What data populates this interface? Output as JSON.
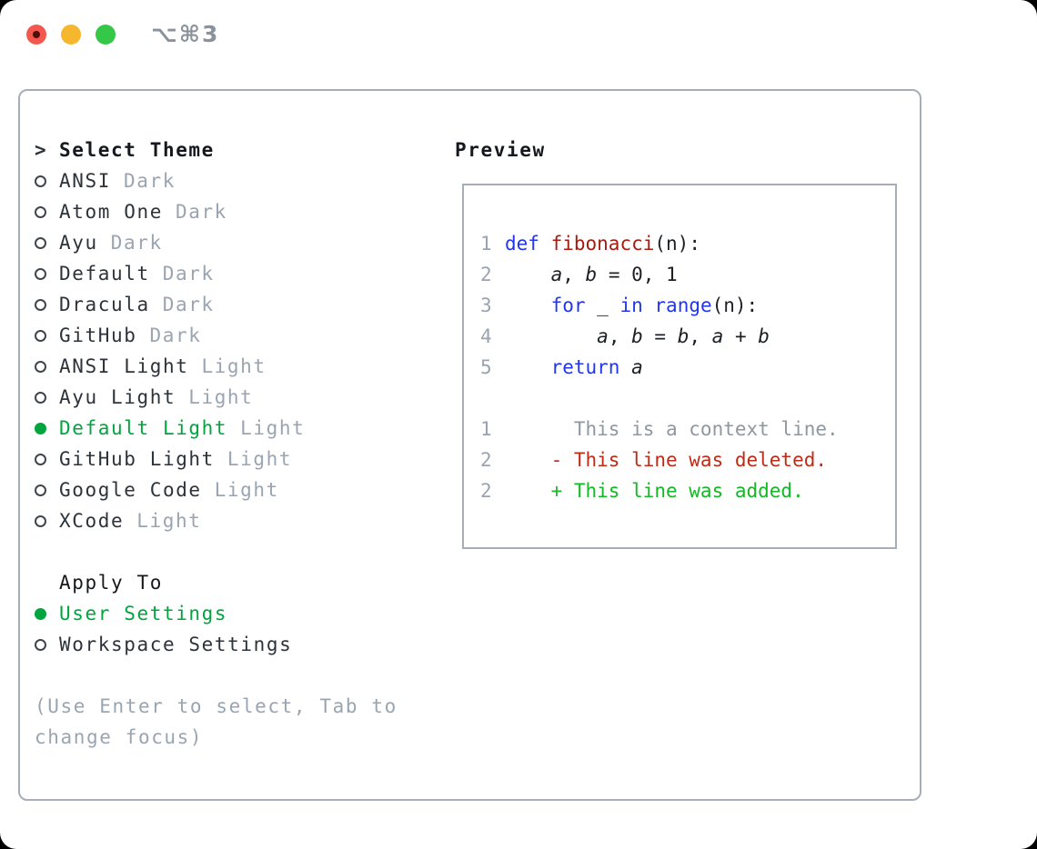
{
  "colors": {
    "text_dark": "#2d333b",
    "suffix_gray": "#9aa5b2",
    "hint_gray": "#9aa5b2",
    "title_gray": "#8a929c",
    "border_gray": "#a6aeb9",
    "lineno_gray": "#9aa3af",
    "accent_green": "#00a53e",
    "keyword_blue": "#2236f0",
    "function_red": "#a81c10",
    "deleted_red": "#bf2b16",
    "added_green": "#14b824",
    "context_gray": "#8f979f",
    "code_black": "#1c1f23",
    "traffic_red": "#f4574d",
    "traffic_red_dot": "#500f08",
    "traffic_yellow": "#f6b62d",
    "traffic_green": "#34c748"
  },
  "window": {
    "title": "⌥⌘3"
  },
  "theme_selector": {
    "header_prefix": ">",
    "header": "Select Theme",
    "themes": [
      {
        "name": "ANSI",
        "variant": "Dark",
        "selected": false
      },
      {
        "name": "Atom One",
        "variant": "Dark",
        "selected": false
      },
      {
        "name": "Ayu",
        "variant": "Dark",
        "selected": false
      },
      {
        "name": "Default",
        "variant": "Dark",
        "selected": false
      },
      {
        "name": "Dracula",
        "variant": "Dark",
        "selected": false
      },
      {
        "name": "GitHub",
        "variant": "Dark",
        "selected": false
      },
      {
        "name": "ANSI Light",
        "variant": "Light",
        "selected": false
      },
      {
        "name": "Ayu Light",
        "variant": "Light",
        "selected": false
      },
      {
        "name": "Default Light",
        "variant": "Light",
        "selected": true
      },
      {
        "name": "GitHub Light",
        "variant": "Light",
        "selected": false
      },
      {
        "name": "Google Code",
        "variant": "Light",
        "selected": false
      },
      {
        "name": "XCode",
        "variant": "Light",
        "selected": false
      }
    ]
  },
  "apply_to": {
    "header": "Apply To",
    "options": [
      {
        "label": "User Settings",
        "selected": true
      },
      {
        "label": "Workspace Settings",
        "selected": false
      }
    ]
  },
  "hint_lines": [
    "(Use Enter to select, Tab to",
    "change focus)"
  ],
  "preview": {
    "header": "Preview",
    "lines": [
      {
        "ln": "1",
        "segs": [
          [
            "kw",
            "def"
          ],
          [
            "plain",
            " "
          ],
          [
            "fn",
            "fibonacci"
          ],
          [
            "plain",
            "(n):"
          ]
        ]
      },
      {
        "ln": "2",
        "segs": [
          [
            "plain",
            "    "
          ],
          [
            "var",
            "a"
          ],
          [
            "plain",
            ", "
          ],
          [
            "var",
            "b"
          ],
          [
            "plain",
            " = 0, 1"
          ]
        ]
      },
      {
        "ln": "3",
        "segs": [
          [
            "plain",
            "    "
          ],
          [
            "kw",
            "for"
          ],
          [
            "plain",
            " _ "
          ],
          [
            "kw",
            "in"
          ],
          [
            "plain",
            " "
          ],
          [
            "kw",
            "range"
          ],
          [
            "plain",
            "(n):"
          ]
        ]
      },
      {
        "ln": "4",
        "segs": [
          [
            "plain",
            "        "
          ],
          [
            "var",
            "a"
          ],
          [
            "plain",
            ", "
          ],
          [
            "var",
            "b"
          ],
          [
            "plain",
            " = "
          ],
          [
            "var",
            "b"
          ],
          [
            "plain",
            ", "
          ],
          [
            "var",
            "a"
          ],
          [
            "plain",
            " + "
          ],
          [
            "var",
            "b"
          ]
        ]
      },
      {
        "ln": "5",
        "segs": [
          [
            "plain",
            "    "
          ],
          [
            "kw",
            "return"
          ],
          [
            "plain",
            " "
          ],
          [
            "var",
            "a"
          ]
        ]
      },
      {
        "ln": "",
        "segs": []
      },
      {
        "ln": "1",
        "segs": [
          [
            "ctx",
            "      This is a context line."
          ]
        ]
      },
      {
        "ln": "2",
        "segs": [
          [
            "del",
            "    - This line was deleted."
          ]
        ]
      },
      {
        "ln": "2",
        "segs": [
          [
            "add",
            "    + This line was added."
          ]
        ]
      }
    ]
  }
}
